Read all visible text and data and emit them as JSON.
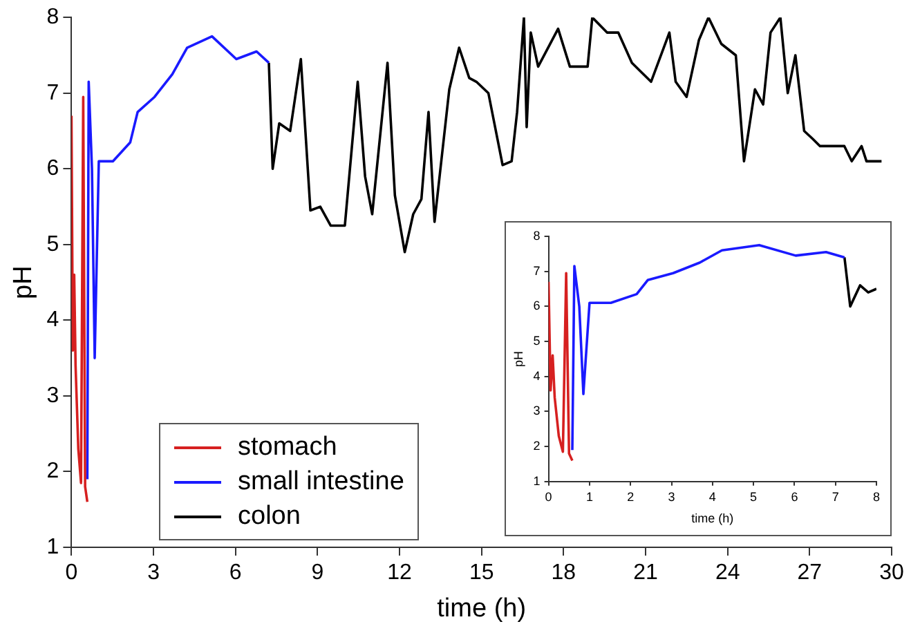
{
  "chart_data": [
    {
      "type": "line",
      "xlabel": "time (h)",
      "ylabel": "pH",
      "xlim": [
        0,
        30
      ],
      "xticks": [
        0,
        3,
        6,
        9,
        12,
        15,
        18,
        21,
        24,
        27,
        30
      ],
      "ylim": [
        1,
        8
      ],
      "yticks": [
        1,
        2,
        3,
        4,
        5,
        6,
        7,
        8
      ],
      "grid": false,
      "legend": "bottom left",
      "marker": "none",
      "line_style": "solid",
      "series": [
        {
          "name": "stomach",
          "color": "#d62020",
          "x": [
            0,
            0.05,
            0.1,
            0.15,
            0.25,
            0.35,
            0.43,
            0.5,
            0.58
          ],
          "values": [
            6.7,
            3.6,
            4.6,
            3.4,
            2.3,
            1.85,
            6.95,
            1.8,
            1.6
          ]
        },
        {
          "name": "small intestine",
          "color": "#1a1aff",
          "x": [
            0.58,
            0.63,
            0.75,
            0.85,
            1.0,
            1.52,
            2.15,
            2.42,
            3.04,
            3.69,
            4.23,
            5.14,
            6.03,
            6.77,
            7.22
          ],
          "values": [
            1.9,
            7.15,
            6.0,
            3.5,
            6.1,
            6.1,
            6.35,
            6.75,
            6.95,
            7.25,
            7.6,
            7.75,
            7.45,
            7.55,
            7.4
          ]
        },
        {
          "name": "colon",
          "color": "#000000",
          "x": [
            7.22,
            7.36,
            7.6,
            8.0,
            8.39,
            8.74,
            9.1,
            9.48,
            10.0,
            10.47,
            10.74,
            11.0,
            11.56,
            11.83,
            12.19,
            12.5,
            12.8,
            13.06,
            13.28,
            13.82,
            14.18,
            14.55,
            14.81,
            15.25,
            15.77,
            16.1,
            16.3,
            16.55,
            16.65,
            16.8,
            17.07,
            17.8,
            18.23,
            18.88,
            19.05,
            19.59,
            20.0,
            20.5,
            21.2,
            21.87,
            22.1,
            22.5,
            22.95,
            23.3,
            23.77,
            24.3,
            24.6,
            25.0,
            25.3,
            25.57,
            25.93,
            26.2,
            26.48,
            26.8,
            27.1,
            27.38,
            28.27,
            28.54,
            28.9,
            29.08,
            29.63
          ],
          "values": [
            7.4,
            6.0,
            6.6,
            6.5,
            7.45,
            5.45,
            5.5,
            5.25,
            5.25,
            7.15,
            5.9,
            5.4,
            7.4,
            5.65,
            4.9,
            5.4,
            5.6,
            6.75,
            5.3,
            7.05,
            7.6,
            7.2,
            7.15,
            7.0,
            6.05,
            6.1,
            6.75,
            8.0,
            6.55,
            7.8,
            7.35,
            7.85,
            7.35,
            7.35,
            8.0,
            7.8,
            7.8,
            7.4,
            7.15,
            7.8,
            7.15,
            6.95,
            7.7,
            8.0,
            7.65,
            7.5,
            6.1,
            7.05,
            6.85,
            7.8,
            8.0,
            7.0,
            7.5,
            6.5,
            6.4,
            6.3,
            6.3,
            6.1,
            6.3,
            6.1,
            6.1
          ]
        }
      ]
    },
    {
      "type": "line",
      "xlabel": "time (h)",
      "ylabel": "pH",
      "xlim": [
        0,
        8
      ],
      "xticks": [
        0,
        1,
        2,
        3,
        4,
        5,
        6,
        7,
        8
      ],
      "ylim": [
        1,
        8
      ],
      "yticks": [
        1,
        2,
        3,
        4,
        5,
        6,
        7,
        8
      ],
      "grid": false,
      "marker": "none",
      "line_style": "solid",
      "series": [
        {
          "color": "#d62020",
          "x": [
            0,
            0.05,
            0.1,
            0.15,
            0.25,
            0.35,
            0.43,
            0.5,
            0.58
          ],
          "values": [
            6.7,
            3.6,
            4.6,
            3.4,
            2.3,
            1.85,
            6.95,
            1.8,
            1.6
          ]
        },
        {
          "color": "#1a1aff",
          "x": [
            0.58,
            0.63,
            0.75,
            0.85,
            1.0,
            1.52,
            2.15,
            2.42,
            3.04,
            3.69,
            4.23,
            5.14,
            6.03,
            6.77,
            7.22
          ],
          "values": [
            1.9,
            7.15,
            6.0,
            3.5,
            6.1,
            6.1,
            6.35,
            6.75,
            6.95,
            7.25,
            7.6,
            7.75,
            7.45,
            7.55,
            7.4
          ]
        },
        {
          "color": "#000000",
          "x": [
            7.22,
            7.36,
            7.6,
            7.8,
            8.0
          ],
          "values": [
            7.4,
            6.0,
            6.6,
            6.4,
            6.5
          ]
        }
      ]
    }
  ]
}
